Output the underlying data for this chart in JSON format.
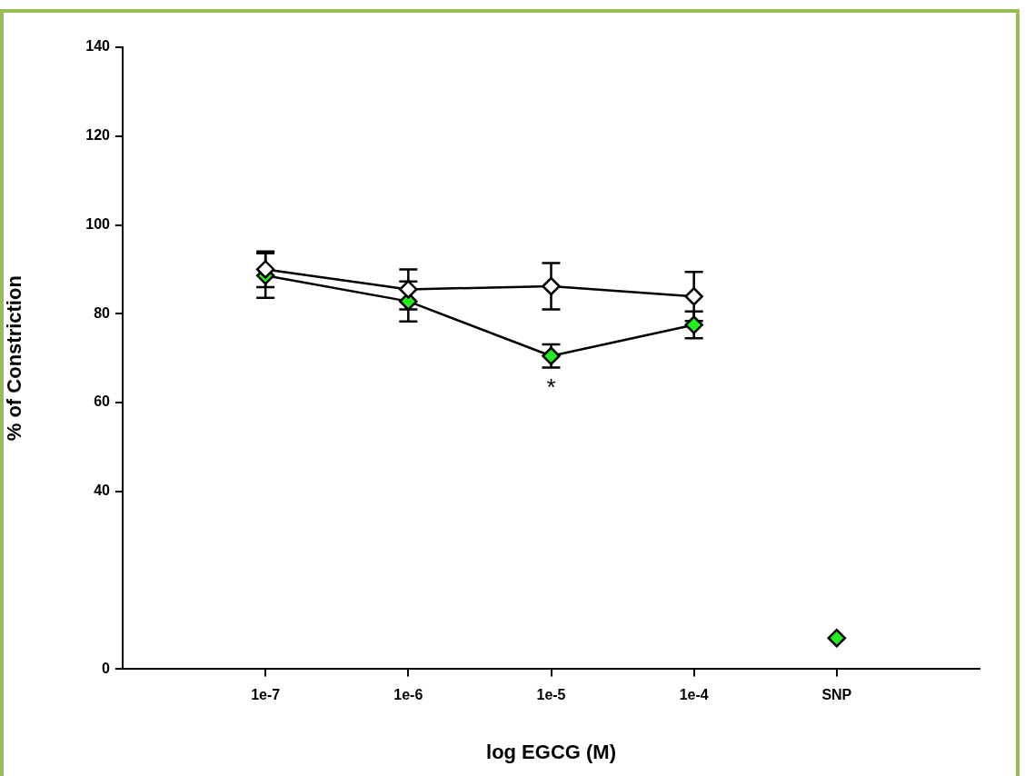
{
  "chart_data": {
    "type": "line",
    "xlabel": "log EGCG (M)",
    "ylabel": "% of Constriction",
    "categories": [
      "1e-7",
      "1e-6",
      "1e-5",
      "1e-4",
      "SNP"
    ],
    "ylim": [
      0,
      140
    ],
    "yticks": [
      0,
      40,
      60,
      80,
      100,
      120,
      140
    ],
    "grid": false,
    "legend": false,
    "marker": "diamond",
    "line_style": "solid",
    "series": [
      {
        "color": "#ffffff",
        "values": [
          90,
          85.5,
          86.2,
          83.9,
          null
        ],
        "errors": [
          4,
          4.5,
          5.2,
          5.5,
          null
        ]
      },
      {
        "color": "#22ee22",
        "values": [
          88.6,
          82.8,
          70.5,
          77.5,
          null
        ],
        "errors": [
          5,
          4.5,
          2.6,
          3,
          null
        ]
      },
      {
        "type": "scatter",
        "color": "#22ee22",
        "values": [
          null,
          null,
          null,
          null,
          7
        ]
      }
    ],
    "annotations": [
      "*"
    ]
  }
}
